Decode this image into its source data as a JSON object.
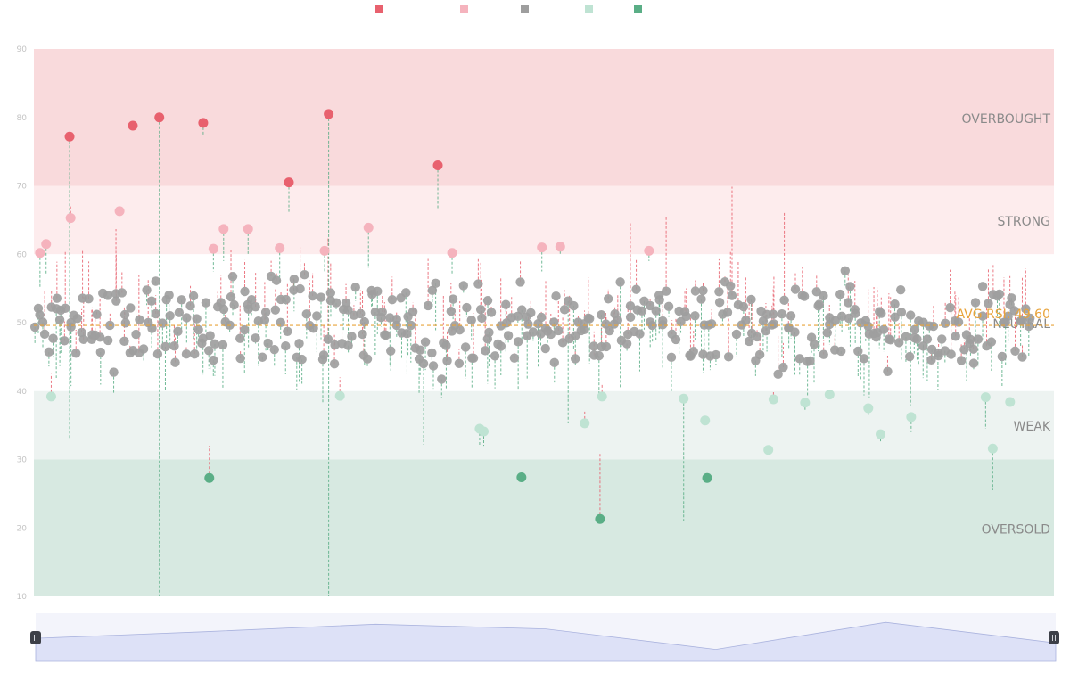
{
  "chart_data": {
    "type": "scatter",
    "title": "",
    "xlabel": "",
    "ylabel": "",
    "ylim": [
      10,
      90
    ],
    "yticks": [
      10,
      20,
      30,
      40,
      50,
      60,
      70,
      80,
      90
    ],
    "grid": false,
    "legend": {
      "placement": "top-center",
      "entries": [
        {
          "category": "overbought",
          "color": "#e8616e"
        },
        {
          "category": "strong",
          "color": "#f5b3bd"
        },
        {
          "category": "neutral",
          "color": "#9e9e9e"
        },
        {
          "category": "weak",
          "color": "#bfe3d3"
        },
        {
          "category": "oversold",
          "color": "#5aae86"
        }
      ]
    },
    "zones": [
      {
        "name": "OVERBOUGHT",
        "from": 70,
        "to": 90,
        "color": "#f9dadc"
      },
      {
        "name": "STRONG",
        "from": 60,
        "to": 70,
        "color": "#fdeced"
      },
      {
        "name": "NEUTRAL",
        "from": 40,
        "to": 60,
        "color": "#ffffff"
      },
      {
        "name": "WEAK",
        "from": 30,
        "to": 40,
        "color": "#edf3f1"
      },
      {
        "name": "OVERSOLD",
        "from": 10,
        "to": 30,
        "color": "#d7e9e1"
      }
    ],
    "reference_line": {
      "label": "AVG RSI: 49.60",
      "value": 49.6,
      "color": "#e8a33a"
    },
    "category_colors": {
      "overbought": "#e8616e",
      "strong": "#f5b3bd",
      "neutral": "#9e9e9e",
      "weak": "#bfe3d3",
      "oversold": "#5aae86"
    },
    "highlighted_points": [
      {
        "x": 0.035,
        "rsi": 77.2,
        "prev": 33.0,
        "cat": "overbought"
      },
      {
        "x": 0.097,
        "rsi": 78.8,
        "prev": 79.0,
        "cat": "overbought"
      },
      {
        "x": 0.123,
        "rsi": 80.0,
        "prev": 10.0,
        "cat": "overbought"
      },
      {
        "x": 0.166,
        "rsi": 79.2,
        "prev": 77.5,
        "cat": "overbought"
      },
      {
        "x": 0.25,
        "rsi": 70.5,
        "prev": 66.0,
        "cat": "overbought"
      },
      {
        "x": 0.289,
        "rsi": 80.5,
        "prev": 10.0,
        "cat": "overbought"
      },
      {
        "x": 0.396,
        "rsi": 73.0,
        "prev": 66.5,
        "cat": "overbought"
      },
      {
        "x": 0.006,
        "rsi": 60.2,
        "prev": 55.0,
        "cat": "strong"
      },
      {
        "x": 0.012,
        "rsi": 61.5,
        "prev": 57.0,
        "cat": "strong"
      },
      {
        "x": 0.036,
        "rsi": 65.3,
        "prev": 67.0,
        "cat": "strong"
      },
      {
        "x": 0.084,
        "rsi": 66.3,
        "prev": 66.5,
        "cat": "strong"
      },
      {
        "x": 0.176,
        "rsi": 60.8,
        "prev": 57.5,
        "cat": "strong"
      },
      {
        "x": 0.186,
        "rsi": 63.7,
        "prev": 59.0,
        "cat": "strong"
      },
      {
        "x": 0.21,
        "rsi": 63.7,
        "prev": 60.0,
        "cat": "strong"
      },
      {
        "x": 0.241,
        "rsi": 60.9,
        "prev": 56.0,
        "cat": "strong"
      },
      {
        "x": 0.285,
        "rsi": 60.5,
        "prev": 57.5,
        "cat": "strong"
      },
      {
        "x": 0.328,
        "rsi": 63.9,
        "prev": 58.0,
        "cat": "strong"
      },
      {
        "x": 0.41,
        "rsi": 60.2,
        "prev": 57.0,
        "cat": "strong"
      },
      {
        "x": 0.498,
        "rsi": 61.0,
        "prev": 57.5,
        "cat": "strong"
      },
      {
        "x": 0.516,
        "rsi": 61.1,
        "prev": 60.0,
        "cat": "strong"
      },
      {
        "x": 0.603,
        "rsi": 60.5,
        "prev": 59.0,
        "cat": "strong"
      },
      {
        "x": 0.017,
        "rsi": 39.2,
        "prev": 42.5,
        "cat": "weak"
      },
      {
        "x": 0.3,
        "rsi": 39.3,
        "prev": 42.0,
        "cat": "weak"
      },
      {
        "x": 0.437,
        "rsi": 34.5,
        "prev": 32.0,
        "cat": "weak"
      },
      {
        "x": 0.441,
        "rsi": 34.1,
        "prev": 32.0,
        "cat": "weak"
      },
      {
        "x": 0.54,
        "rsi": 35.3,
        "prev": 37.0,
        "cat": "weak"
      },
      {
        "x": 0.557,
        "rsi": 39.2,
        "prev": 41.0,
        "cat": "weak"
      },
      {
        "x": 0.637,
        "rsi": 38.9,
        "prev": 21.0,
        "cat": "weak"
      },
      {
        "x": 0.658,
        "rsi": 35.7,
        "prev": 36.0,
        "cat": "weak"
      },
      {
        "x": 0.72,
        "rsi": 31.4,
        "prev": 31.0,
        "cat": "weak"
      },
      {
        "x": 0.725,
        "rsi": 38.8,
        "prev": 40.0,
        "cat": "weak"
      },
      {
        "x": 0.756,
        "rsi": 38.3,
        "prev": 37.0,
        "cat": "weak"
      },
      {
        "x": 0.78,
        "rsi": 39.5,
        "prev": 39.5,
        "cat": "weak"
      },
      {
        "x": 0.818,
        "rsi": 37.5,
        "prev": 36.5,
        "cat": "weak"
      },
      {
        "x": 0.83,
        "rsi": 33.7,
        "prev": 32.5,
        "cat": "weak"
      },
      {
        "x": 0.86,
        "rsi": 36.2,
        "prev": 34.0,
        "cat": "weak"
      },
      {
        "x": 0.933,
        "rsi": 39.1,
        "prev": 34.5,
        "cat": "weak"
      },
      {
        "x": 0.94,
        "rsi": 31.6,
        "prev": 25.5,
        "cat": "weak"
      },
      {
        "x": 0.957,
        "rsi": 38.4,
        "prev": 38.0,
        "cat": "weak"
      },
      {
        "x": 0.172,
        "rsi": 27.3,
        "prev": 32.0,
        "cat": "oversold"
      },
      {
        "x": 0.478,
        "rsi": 27.4,
        "prev": 27.5,
        "cat": "oversold"
      },
      {
        "x": 0.555,
        "rsi": 21.3,
        "prev": 31.0,
        "cat": "oversold"
      },
      {
        "x": 0.66,
        "rsi": 27.3,
        "prev": 28.0,
        "cat": "oversold"
      }
    ],
    "neutral_point_count": 430,
    "navigator": {
      "values": [
        49.4,
        50.1,
        50.9,
        50.4,
        48.2,
        51.1,
        48.9
      ]
    }
  }
}
